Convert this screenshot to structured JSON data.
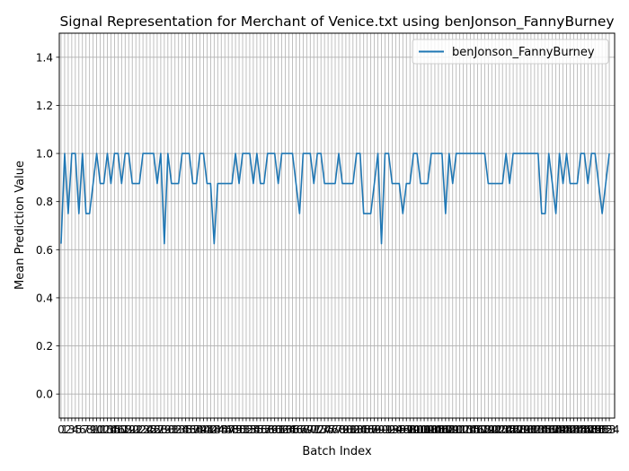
{
  "chart_data": {
    "type": "line",
    "title": "Signal Representation for Merchant of Venice.txt using benJonson_FannyBurney",
    "xlabel": "Batch Index",
    "ylabel": "Mean Prediction Value",
    "ylim": [
      -0.1,
      1.5
    ],
    "yticks": [
      0.0,
      0.2,
      0.4,
      0.6,
      0.8,
      1.0,
      1.2,
      1.4
    ],
    "xlim": [
      -0.5,
      155.5
    ],
    "grid": true,
    "legend": "top-right",
    "series": [
      {
        "name": "benJonson_FannyBurney",
        "color": "#1f77b4",
        "values": [
          0.625,
          1.0,
          0.75,
          1.0,
          1.0,
          0.75,
          1.0,
          0.75,
          0.75,
          0.875,
          1.0,
          0.875,
          0.875,
          1.0,
          0.875,
          1.0,
          1.0,
          0.875,
          1.0,
          1.0,
          0.875,
          0.875,
          0.875,
          1.0,
          1.0,
          1.0,
          1.0,
          0.875,
          1.0,
          0.625,
          1.0,
          0.875,
          0.875,
          0.875,
          1.0,
          1.0,
          1.0,
          0.875,
          0.875,
          1.0,
          1.0,
          0.875,
          0.875,
          0.625,
          0.875,
          0.875,
          0.875,
          0.875,
          0.875,
          1.0,
          0.875,
          1.0,
          1.0,
          1.0,
          0.875,
          1.0,
          0.875,
          0.875,
          1.0,
          1.0,
          1.0,
          0.875,
          1.0,
          1.0,
          1.0,
          1.0,
          0.875,
          0.75,
          1.0,
          1.0,
          1.0,
          0.875,
          1.0,
          1.0,
          0.875,
          0.875,
          0.875,
          0.875,
          1.0,
          0.875,
          0.875,
          0.875,
          0.875,
          1.0,
          1.0,
          0.75,
          0.75,
          0.75,
          0.875,
          1.0,
          0.625,
          1.0,
          1.0,
          0.875,
          0.875,
          0.875,
          0.75,
          0.875,
          0.875,
          1.0,
          1.0,
          0.875,
          0.875,
          0.875,
          1.0,
          1.0,
          1.0,
          1.0,
          0.75,
          1.0,
          0.875,
          1.0,
          1.0,
          1.0,
          1.0,
          1.0,
          1.0,
          1.0,
          1.0,
          1.0,
          0.875,
          0.875,
          0.875,
          0.875,
          0.875,
          1.0,
          0.875,
          1.0,
          1.0,
          1.0,
          1.0,
          1.0,
          1.0,
          1.0,
          1.0,
          0.75,
          0.75,
          1.0,
          0.875,
          0.75,
          1.0,
          0.875,
          1.0,
          0.875,
          0.875,
          0.875,
          1.0,
          1.0,
          0.875,
          1.0,
          1.0,
          0.875,
          0.75,
          0.875,
          1.0
        ]
      }
    ]
  }
}
